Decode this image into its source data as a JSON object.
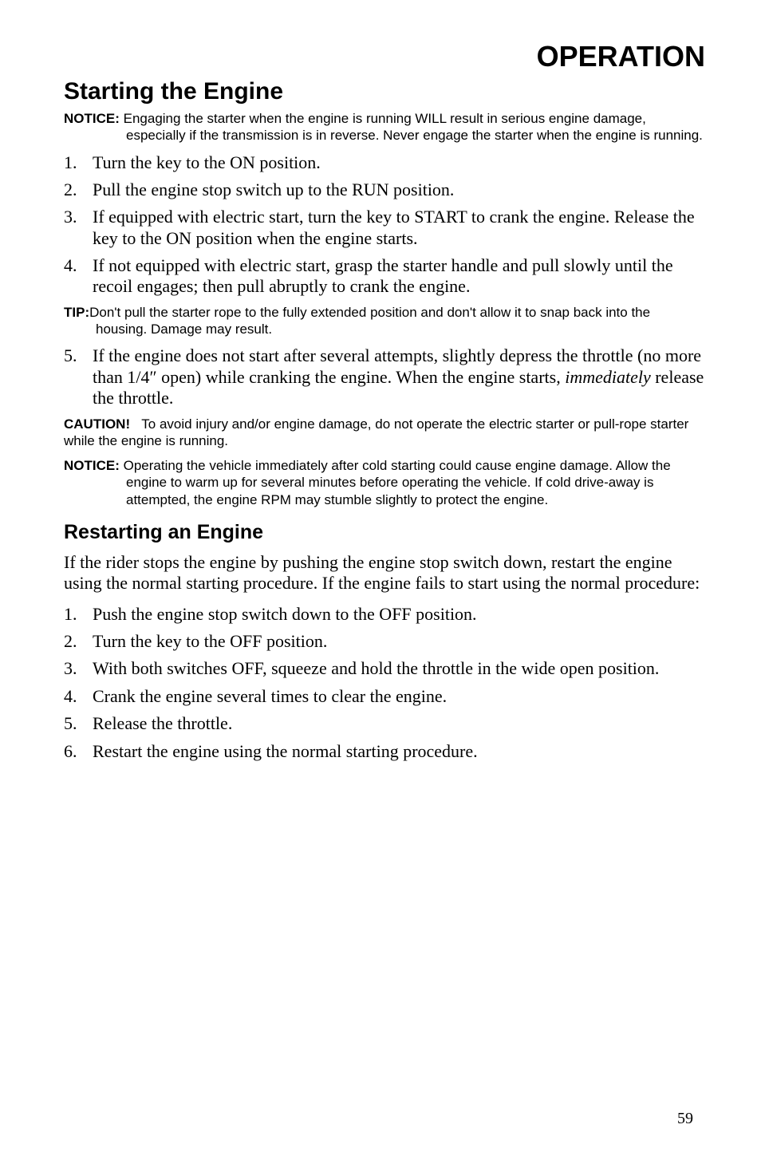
{
  "page_header": "OPERATION",
  "section_title": "Starting the Engine",
  "notice1": {
    "label": "NOTICE:",
    "text": "Engaging the starter when the engine is running WILL result in serious engine damage, especially if the transmission is in reverse. Never engage the starter when the engine is running."
  },
  "list1": [
    "Turn the key to the ON position.",
    "Pull the engine stop switch up to the RUN position.",
    "If equipped with electric start, turn the key to START to crank the engine. Release the key to the ON position when the engine starts.",
    "If not equipped with electric start, grasp the starter handle and pull slowly until the recoil engages; then pull abruptly to crank the engine."
  ],
  "tip1": {
    "label": "TIP:",
    "text": "Don't pull the starter rope to the fully extended position and don't allow it to snap back into the housing. Damage may result."
  },
  "list1b_pre": "If the engine does not start after several attempts, slightly depress the throttle (no more than 1/4″ open) while cranking the engine. When the engine starts, ",
  "list1b_italic": "immediately",
  "list1b_post": " release the throttle.",
  "caution1": {
    "label": "CAUTION!",
    "text": "To avoid injury and/or engine damage, do not operate the electric starter or pull-rope starter while the engine is running."
  },
  "notice2": {
    "label": "NOTICE:",
    "text": "Operating the vehicle immediately after cold starting could cause engine damage. Allow the engine to warm up for several minutes before operating the vehicle. If cold drive-away is attempted, the engine RPM may stumble slightly to protect the engine."
  },
  "subsection_title": "Restarting an Engine",
  "body1": "If the rider stops the engine by pushing the engine stop switch down, restart the engine using the normal starting procedure. If the engine fails to start using the normal procedure:",
  "list2": [
    "Push the engine stop switch down to the OFF position.",
    "Turn the key to the OFF position.",
    "With both switches OFF, squeeze and hold the throttle in the wide open position.",
    "Crank the engine several times to clear the engine.",
    "Release the throttle.",
    "Restart the engine using the normal starting procedure."
  ],
  "page_number": "59"
}
